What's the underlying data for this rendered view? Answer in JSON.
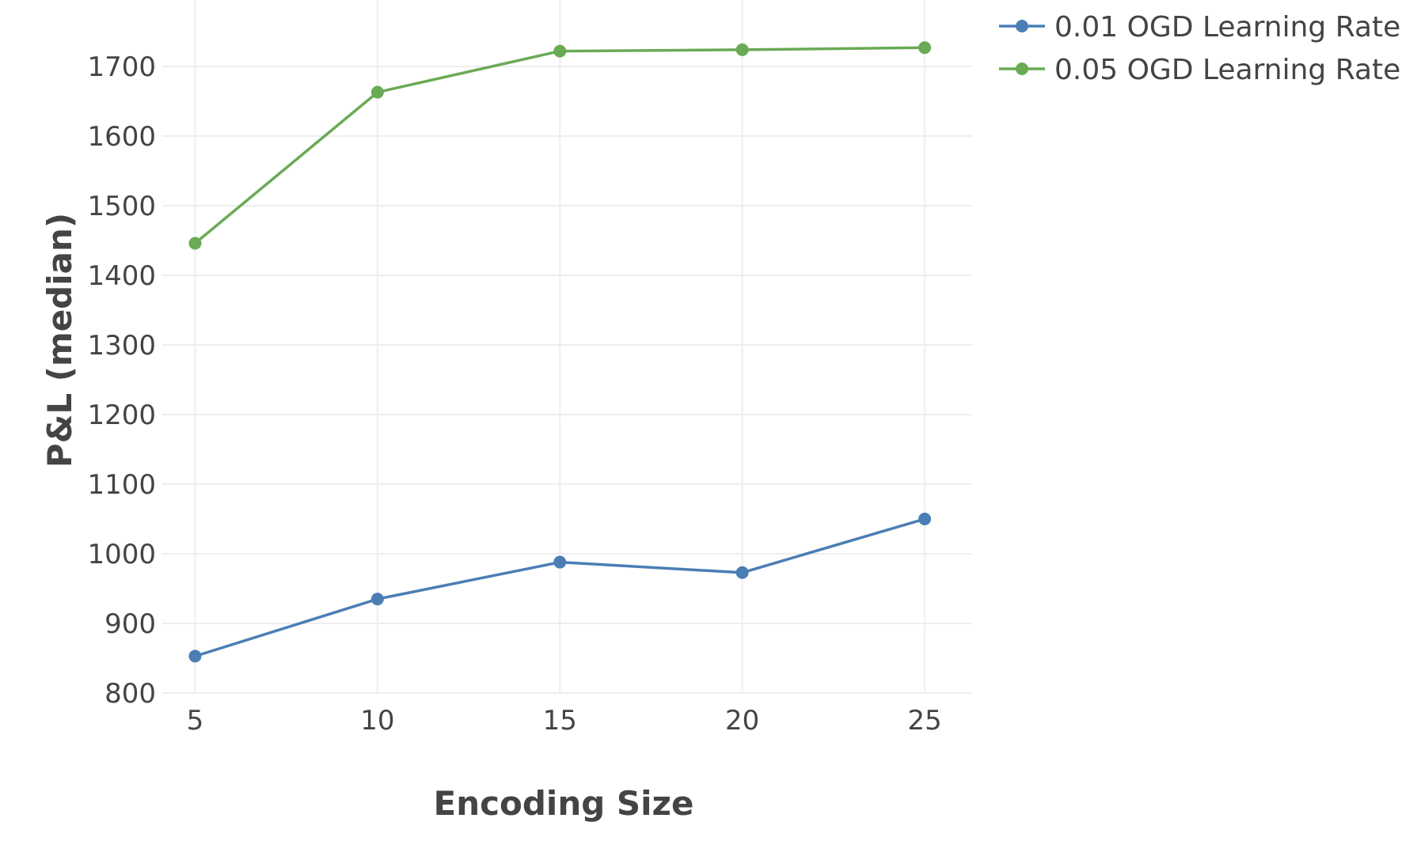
{
  "chart_data": {
    "type": "line",
    "title": "",
    "xlabel": "Encoding Size",
    "ylabel": "P&L (median)",
    "x": [
      5,
      10,
      15,
      20,
      25
    ],
    "xticks": [
      "5",
      "10",
      "15",
      "20",
      "25"
    ],
    "yticks": [
      "800",
      "900",
      "1000",
      "1100",
      "1200",
      "1300",
      "1400",
      "1500",
      "1600",
      "1700"
    ],
    "xlim": [
      4.1,
      26.3
    ],
    "ylim": [
      800,
      1775
    ],
    "grid": true,
    "legend_position": "top-right",
    "series": [
      {
        "name": "0.01 OGD Learning Rate",
        "color": "#4a7eb5",
        "values": [
          853,
          935,
          988,
          973,
          1050
        ]
      },
      {
        "name": "0.05 OGD Learning Rate",
        "color": "#6aaa55",
        "values": [
          1446,
          1663,
          1722,
          1724,
          1727
        ]
      }
    ]
  }
}
